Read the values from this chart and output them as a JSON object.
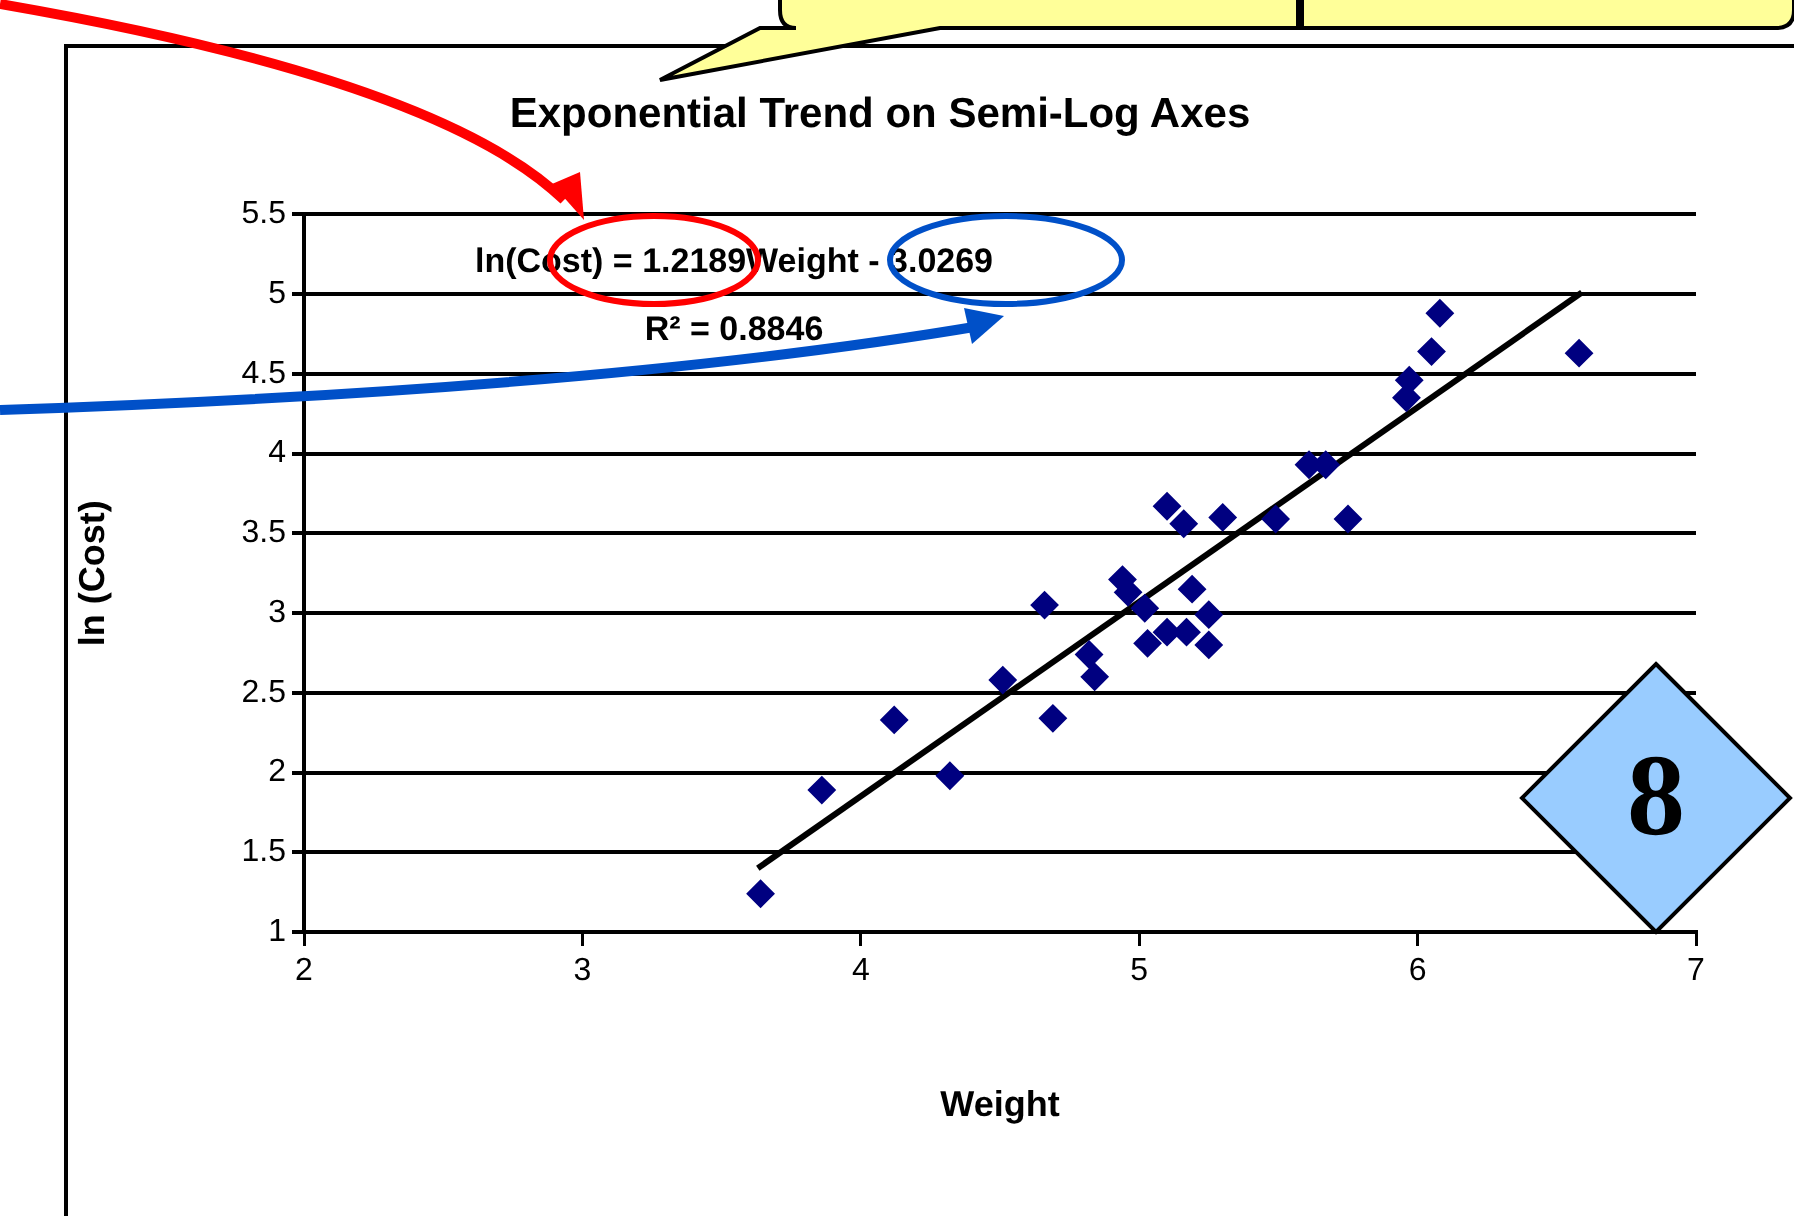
{
  "chart_data": {
    "type": "scatter",
    "title": "Exponential Trend on Semi-Log Axes",
    "xlabel": "Weight",
    "ylabel": "ln (Cost)",
    "xlim": [
      2,
      7
    ],
    "xticks": [
      2,
      3,
      4,
      5,
      6,
      7
    ],
    "ylim": [
      1,
      5.5
    ],
    "yticks": [
      1,
      1.5,
      2,
      2.5,
      3,
      3.5,
      4,
      4.5,
      5,
      5.5
    ],
    "grid": "y",
    "legend": false,
    "marker": "diamond",
    "annotations": [
      "ln(Cost) = 1.2189Weight - 3.0269",
      "R² = 0.8846",
      "8"
    ],
    "series": [
      {
        "color": "#000080",
        "x": [
          3.64,
          3.86,
          4.12,
          4.32,
          4.51,
          4.66,
          4.69,
          4.82,
          4.84,
          4.94,
          4.96,
          5.02,
          5.03,
          5.1,
          5.17,
          5.1,
          5.16,
          5.19,
          5.25,
          5.25,
          5.3,
          5.49,
          5.61,
          5.67,
          5.75,
          5.96,
          5.97,
          6.05,
          6.08,
          6.58
        ],
        "values": [
          1.24,
          1.89,
          2.33,
          1.98,
          2.58,
          3.05,
          2.34,
          2.74,
          2.6,
          3.21,
          3.13,
          3.03,
          2.81,
          2.88,
          2.88,
          3.67,
          3.56,
          3.15,
          2.99,
          2.8,
          3.6,
          3.59,
          3.93,
          3.93,
          3.59,
          4.35,
          4.46,
          4.64,
          4.88,
          4.63
        ]
      },
      {
        "type": "line",
        "color": "#000000",
        "marker": "none",
        "x": [
          3.63,
          6.59
        ],
        "values": [
          1.4,
          5.01
        ]
      }
    ]
  }
}
